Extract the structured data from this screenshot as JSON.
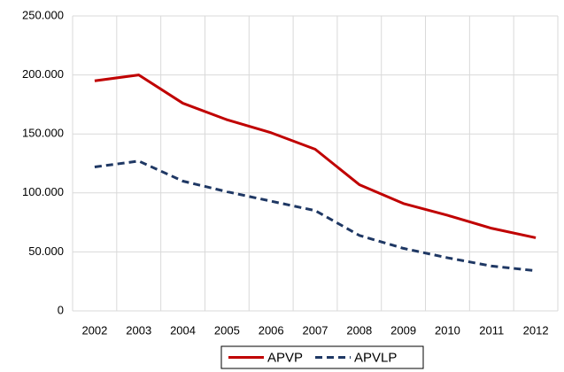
{
  "chart_data": {
    "type": "line",
    "categories": [
      "2002",
      "2003",
      "2004",
      "2005",
      "2006",
      "2007",
      "2008",
      "2009",
      "2010",
      "2011",
      "2012"
    ],
    "series": [
      {
        "name": "APVP",
        "color": "#c00000",
        "dashed": false,
        "values": [
          195000,
          200000,
          176000,
          162000,
          151000,
          137000,
          107000,
          91000,
          81000,
          70000,
          62000
        ]
      },
      {
        "name": "APVLP",
        "color": "#1f3864",
        "dashed": true,
        "values": [
          122000,
          127000,
          110000,
          101000,
          93000,
          85000,
          64000,
          53000,
          45000,
          38000,
          34000
        ]
      }
    ],
    "ylim": [
      0,
      250000
    ],
    "yticks": [
      0,
      {
        "value": 50000,
        "label": "50.000"
      },
      {
        "value": 100000,
        "label": "100.000"
      },
      {
        "value": 150000,
        "label": "150.000"
      },
      {
        "value": 200000,
        "label": "200.000"
      },
      {
        "value": 250000,
        "label": "250.000"
      }
    ],
    "grid": true
  }
}
